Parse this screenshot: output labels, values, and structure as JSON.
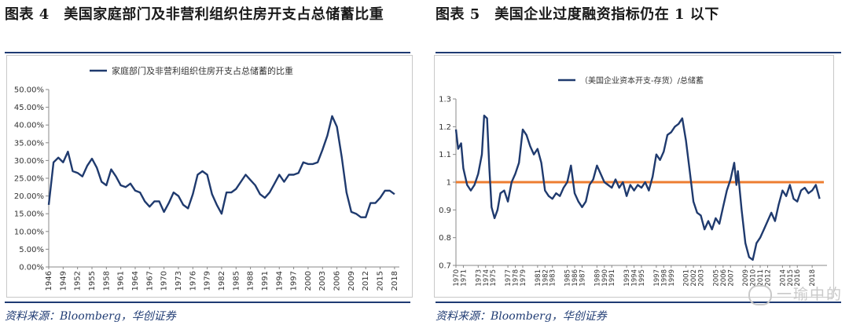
{
  "left": {
    "title": "图表 4　美国家庭部门及非营利组织住房开支占总储蓄比重",
    "source": "资料来源：Bloomberg，华创证券",
    "chart_data": {
      "type": "line",
      "series_name": "家庭部门及非营利组织住房开支占总储蓄的比重",
      "ylim": [
        0,
        50
      ],
      "yticks": [
        0,
        5,
        10,
        15,
        20,
        25,
        30,
        35,
        40,
        45,
        50
      ],
      "ytick_labels": [
        "0.00%",
        "5.00%",
        "10.00%",
        "15.00%",
        "20.00%",
        "25.00%",
        "30.00%",
        "35.00%",
        "40.00%",
        "45.00%",
        "50.00%"
      ],
      "xlim": [
        1946,
        2019
      ],
      "xticks": [
        1946,
        1949,
        1952,
        1955,
        1958,
        1961,
        1964,
        1967,
        1970,
        1973,
        1976,
        1979,
        1982,
        1985,
        1988,
        1991,
        1994,
        1997,
        2000,
        2003,
        2006,
        2009,
        2012,
        2015,
        2018
      ],
      "points": [
        [
          1946,
          17.5
        ],
        [
          1947,
          29.5
        ],
        [
          1948,
          30.8
        ],
        [
          1949,
          29.5
        ],
        [
          1950,
          32.5
        ],
        [
          1951,
          27
        ],
        [
          1952,
          26.5
        ],
        [
          1953,
          25.5
        ],
        [
          1954,
          28.5
        ],
        [
          1955,
          30.5
        ],
        [
          1956,
          28
        ],
        [
          1957,
          24
        ],
        [
          1958,
          23
        ],
        [
          1959,
          27.5
        ],
        [
          1960,
          25.5
        ],
        [
          1961,
          23
        ],
        [
          1962,
          22.5
        ],
        [
          1963,
          23.5
        ],
        [
          1964,
          21.5
        ],
        [
          1965,
          21
        ],
        [
          1966,
          18.5
        ],
        [
          1967,
          17
        ],
        [
          1968,
          18.5
        ],
        [
          1969,
          18.5
        ],
        [
          1970,
          15.5
        ],
        [
          1971,
          18
        ],
        [
          1972,
          21
        ],
        [
          1973,
          20
        ],
        [
          1974,
          17.5
        ],
        [
          1975,
          16.5
        ],
        [
          1976,
          20.5
        ],
        [
          1977,
          26
        ],
        [
          1978,
          27
        ],
        [
          1979,
          26
        ],
        [
          1980,
          20.5
        ],
        [
          1981,
          17.5
        ],
        [
          1982,
          15
        ],
        [
          1983,
          21
        ],
        [
          1984,
          21
        ],
        [
          1985,
          22
        ],
        [
          1986,
          24
        ],
        [
          1987,
          26
        ],
        [
          1988,
          24.5
        ],
        [
          1989,
          23
        ],
        [
          1990,
          20.5
        ],
        [
          1991,
          19.5
        ],
        [
          1992,
          21
        ],
        [
          1993,
          23.5
        ],
        [
          1994,
          26
        ],
        [
          1995,
          24
        ],
        [
          1996,
          26
        ],
        [
          1997,
          26
        ],
        [
          1998,
          26.5
        ],
        [
          1999,
          29.5
        ],
        [
          2000,
          29
        ],
        [
          2001,
          29
        ],
        [
          2002,
          29.5
        ],
        [
          2003,
          33
        ],
        [
          2004,
          37
        ],
        [
          2005,
          42.5
        ],
        [
          2006,
          39.5
        ],
        [
          2007,
          31
        ],
        [
          2008,
          21
        ],
        [
          2009,
          15.5
        ],
        [
          2010,
          15
        ],
        [
          2011,
          14
        ],
        [
          2012,
          14
        ],
        [
          2013,
          18
        ],
        [
          2014,
          18
        ],
        [
          2015,
          19.5
        ],
        [
          2016,
          21.5
        ],
        [
          2017,
          21.5
        ],
        [
          2018,
          20.5
        ]
      ]
    }
  },
  "right": {
    "title": "图表 5　美国企业过度融资指标仍在 1 以下",
    "source": "资料来源：Bloomberg，华创证券",
    "watermark": "一瑜中的",
    "chart_data": {
      "type": "line",
      "series_name": "（美国企业资本开支-存货）/总储蓄",
      "reference_line": {
        "value": 1,
        "color": "#ed7d31"
      },
      "ylim": [
        0.7,
        1.3
      ],
      "yticks": [
        0.7,
        0.8,
        0.9,
        1.0,
        1.1,
        1.2,
        1.3
      ],
      "ytick_labels": [
        "0.7",
        "0.8",
        "0.9",
        "1",
        "1.1",
        "1.2",
        "1.3"
      ],
      "xlim": [
        1970,
        2020
      ],
      "xticks": [
        1970,
        1971,
        1973,
        1974,
        1975,
        1977,
        1978,
        1979,
        1981,
        1982,
        1983,
        1985,
        1986,
        1987,
        1989,
        1990,
        1991,
        1993,
        1994,
        1995,
        1997,
        1998,
        1999,
        2001,
        2002,
        2003,
        2005,
        2006,
        2007,
        2009,
        2010,
        2011,
        2012,
        2014,
        2015,
        2016,
        2018
      ],
      "points": [
        [
          1970,
          1.19
        ],
        [
          1970.3,
          1.12
        ],
        [
          1970.7,
          1.14
        ],
        [
          1971,
          1.05
        ],
        [
          1971.5,
          0.99
        ],
        [
          1972,
          0.97
        ],
        [
          1972.5,
          0.99
        ],
        [
          1973,
          1.03
        ],
        [
          1973.5,
          1.1
        ],
        [
          1973.8,
          1.24
        ],
        [
          1974.2,
          1.23
        ],
        [
          1974.5,
          1.05
        ],
        [
          1974.8,
          0.91
        ],
        [
          1975.2,
          0.87
        ],
        [
          1975.6,
          0.9
        ],
        [
          1976,
          0.96
        ],
        [
          1976.5,
          0.97
        ],
        [
          1977,
          0.93
        ],
        [
          1977.5,
          1.0
        ],
        [
          1978,
          1.03
        ],
        [
          1978.5,
          1.07
        ],
        [
          1979,
          1.19
        ],
        [
          1979.5,
          1.17
        ],
        [
          1980,
          1.13
        ],
        [
          1980.5,
          1.1
        ],
        [
          1981,
          1.12
        ],
        [
          1981.5,
          1.07
        ],
        [
          1982,
          0.97
        ],
        [
          1982.5,
          0.95
        ],
        [
          1983,
          0.94
        ],
        [
          1983.5,
          0.96
        ],
        [
          1984,
          0.95
        ],
        [
          1984.5,
          0.98
        ],
        [
          1985,
          1.0
        ],
        [
          1985.5,
          1.06
        ],
        [
          1986,
          0.96
        ],
        [
          1986.5,
          0.93
        ],
        [
          1987,
          0.91
        ],
        [
          1987.5,
          0.93
        ],
        [
          1988,
          0.99
        ],
        [
          1988.5,
          1.01
        ],
        [
          1989,
          1.06
        ],
        [
          1989.5,
          1.03
        ],
        [
          1990,
          1.0
        ],
        [
          1990.5,
          0.99
        ],
        [
          1991,
          0.98
        ],
        [
          1991.5,
          1.01
        ],
        [
          1992,
          0.98
        ],
        [
          1992.5,
          1.0
        ],
        [
          1993,
          0.95
        ],
        [
          1993.5,
          0.99
        ],
        [
          1994,
          0.97
        ],
        [
          1994.5,
          0.99
        ],
        [
          1995,
          0.98
        ],
        [
          1995.5,
          1.0
        ],
        [
          1996,
          0.97
        ],
        [
          1996.5,
          1.02
        ],
        [
          1997,
          1.1
        ],
        [
          1997.5,
          1.08
        ],
        [
          1998,
          1.11
        ],
        [
          1998.5,
          1.17
        ],
        [
          1999,
          1.18
        ],
        [
          1999.5,
          1.2
        ],
        [
          2000,
          1.21
        ],
        [
          2000.5,
          1.23
        ],
        [
          2001,
          1.15
        ],
        [
          2001.5,
          1.04
        ],
        [
          2002,
          0.93
        ],
        [
          2002.5,
          0.89
        ],
        [
          2003,
          0.88
        ],
        [
          2003.5,
          0.83
        ],
        [
          2004,
          0.86
        ],
        [
          2004.5,
          0.83
        ],
        [
          2005,
          0.87
        ],
        [
          2005.5,
          0.85
        ],
        [
          2006,
          0.91
        ],
        [
          2006.5,
          0.97
        ],
        [
          2007,
          1.01
        ],
        [
          2007.5,
          1.07
        ],
        [
          2007.8,
          0.99
        ],
        [
          2008,
          1.04
        ],
        [
          2008.5,
          0.9
        ],
        [
          2009,
          0.78
        ],
        [
          2009.5,
          0.73
        ],
        [
          2010,
          0.72
        ],
        [
          2010.5,
          0.78
        ],
        [
          2011,
          0.8
        ],
        [
          2011.5,
          0.83
        ],
        [
          2012,
          0.86
        ],
        [
          2012.5,
          0.89
        ],
        [
          2013,
          0.86
        ],
        [
          2013.5,
          0.92
        ],
        [
          2014,
          0.97
        ],
        [
          2014.5,
          0.95
        ],
        [
          2015,
          0.99
        ],
        [
          2015.5,
          0.94
        ],
        [
          2016,
          0.93
        ],
        [
          2016.5,
          0.97
        ],
        [
          2017,
          0.98
        ],
        [
          2017.5,
          0.96
        ],
        [
          2018,
          0.97
        ],
        [
          2018.5,
          0.99
        ],
        [
          2019,
          0.94
        ]
      ]
    }
  }
}
